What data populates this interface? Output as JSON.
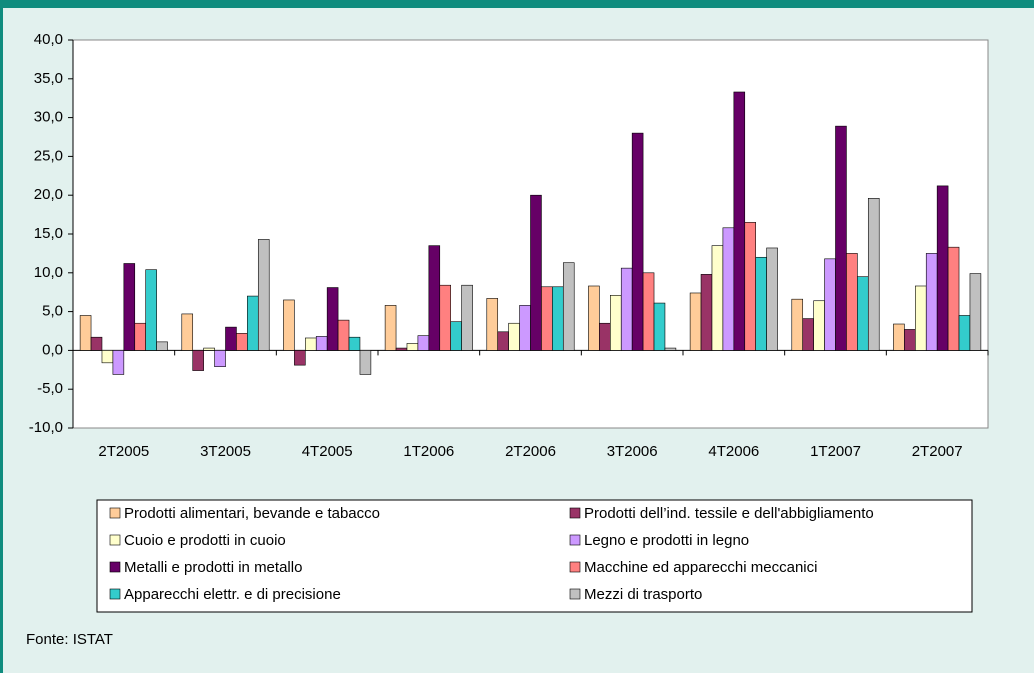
{
  "chart_data": {
    "type": "bar",
    "categories": [
      "2T2005",
      "3T2005",
      "4T2005",
      "1T2006",
      "2T2006",
      "3T2006",
      "4T2006",
      "1T2007",
      "2T2007"
    ],
    "series": [
      {
        "name": "Prodotti alimentari, bevande e tabacco",
        "color": "#ffcc99",
        "values": [
          4.5,
          4.7,
          6.5,
          5.8,
          6.7,
          8.3,
          7.4,
          6.6,
          3.4
        ]
      },
      {
        "name": "Prodotti dell’ind. tessile e dell'abbigliamento",
        "color": "#993366",
        "values": [
          1.7,
          -2.6,
          -1.9,
          0.3,
          2.4,
          3.5,
          9.8,
          4.1,
          2.7
        ]
      },
      {
        "name": "Cuoio e prodotti in cuoio",
        "color": "#ffffcc",
        "values": [
          -1.6,
          0.3,
          1.6,
          0.9,
          3.5,
          7.1,
          13.5,
          6.4,
          8.3
        ]
      },
      {
        "name": "Legno e prodotti in legno",
        "color": "#cc99ff",
        "values": [
          -3.1,
          -2.1,
          1.8,
          1.9,
          5.8,
          10.6,
          15.8,
          11.8,
          12.5
        ]
      },
      {
        "name": "Metalli e prodotti in metallo",
        "color": "#660066",
        "values": [
          11.2,
          3.0,
          8.1,
          13.5,
          20.0,
          28.0,
          33.3,
          28.9,
          21.2
        ]
      },
      {
        "name": "Macchine ed apparecchi meccanici",
        "color": "#ff8080",
        "values": [
          3.5,
          2.2,
          3.9,
          8.4,
          8.2,
          10.0,
          16.5,
          12.5,
          13.3
        ]
      },
      {
        "name": "Apparecchi elettr. e di precisione",
        "color": "#33cccc",
        "values": [
          10.4,
          7.0,
          1.7,
          3.7,
          8.2,
          6.1,
          12.0,
          9.5,
          4.5
        ]
      },
      {
        "name": "Mezzi di trasporto",
        "color": "#c0c0c0",
        "values": [
          1.1,
          14.3,
          -3.1,
          8.4,
          11.3,
          0.3,
          13.2,
          19.6,
          9.9
        ]
      }
    ],
    "ylim": [
      -10,
      40
    ],
    "yticks": [
      {
        "value": -10,
        "label": "-10,0"
      },
      {
        "value": -5,
        "label": "-5,0"
      },
      {
        "value": 0,
        "label": "0,0"
      },
      {
        "value": 5,
        "label": "5,0"
      },
      {
        "value": 10,
        "label": "10,0"
      },
      {
        "value": 15,
        "label": "15,0"
      },
      {
        "value": 20,
        "label": "20,0"
      },
      {
        "value": 25,
        "label": "25,0"
      },
      {
        "value": 30,
        "label": "30,0"
      },
      {
        "value": 35,
        "label": "35,0"
      },
      {
        "value": 40,
        "label": "40,0"
      }
    ],
    "note": "Fonte: ISTAT"
  }
}
